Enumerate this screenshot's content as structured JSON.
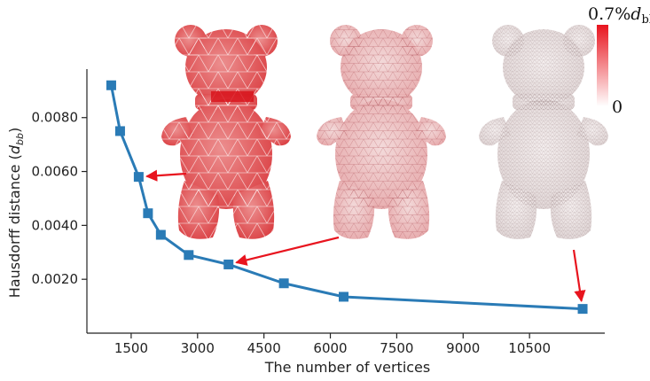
{
  "chart_data": {
    "type": "line",
    "xlabel": "The number of vertices",
    "ylabel_main": "Hausdorff distance (",
    "ylabel_unit": "d",
    "ylabel_sub": "bb",
    "ylabel_end": ")",
    "xlim": [
      500,
      12200
    ],
    "ylim": [
      0.0,
      0.0098
    ],
    "xticks": [
      1500,
      3000,
      4500,
      6000,
      7500,
      9000,
      10500
    ],
    "xtick_labels": [
      "1500",
      "3000",
      "4500",
      "6000",
      "7500",
      "9000",
      "10500"
    ],
    "yticks": [
      0.002,
      0.004,
      0.006,
      0.008
    ],
    "ytick_labels": [
      "0.0020",
      "0.0040",
      "0.0060",
      "0.0080"
    ],
    "grid": false,
    "series": [
      {
        "color": "#2a7bb6",
        "marker": "square",
        "x": [
          1050,
          1250,
          1670,
          1880,
          2170,
          2800,
          3700,
          4950,
          6300,
          11700
        ],
        "y": [
          0.0092,
          0.0075,
          0.0058,
          0.00445,
          0.00365,
          0.0029,
          0.00255,
          0.00185,
          0.00135,
          0.0009
        ]
      }
    ],
    "colorbar": {
      "max_label": "0.7%",
      "max_label_unit": "d",
      "max_label_sub": "bb",
      "min_label": "0",
      "color_max": "#e8141e",
      "color_min": "#ffffff"
    },
    "annotations": [
      {
        "type": "arrow",
        "color": "#e8141e",
        "points_to_index": 2
      },
      {
        "type": "arrow",
        "color": "#e8141e",
        "points_to_index": 6
      },
      {
        "type": "arrow",
        "color": "#e8141e",
        "points_to_index": 9
      }
    ],
    "insets": [
      {
        "name": "bear-mesh-coarse",
        "mesh_density": "coarse",
        "error_level": "high"
      },
      {
        "name": "bear-mesh-medium",
        "mesh_density": "medium",
        "error_level": "medium"
      },
      {
        "name": "bear-mesh-fine",
        "mesh_density": "fine",
        "error_level": "low"
      }
    ]
  }
}
